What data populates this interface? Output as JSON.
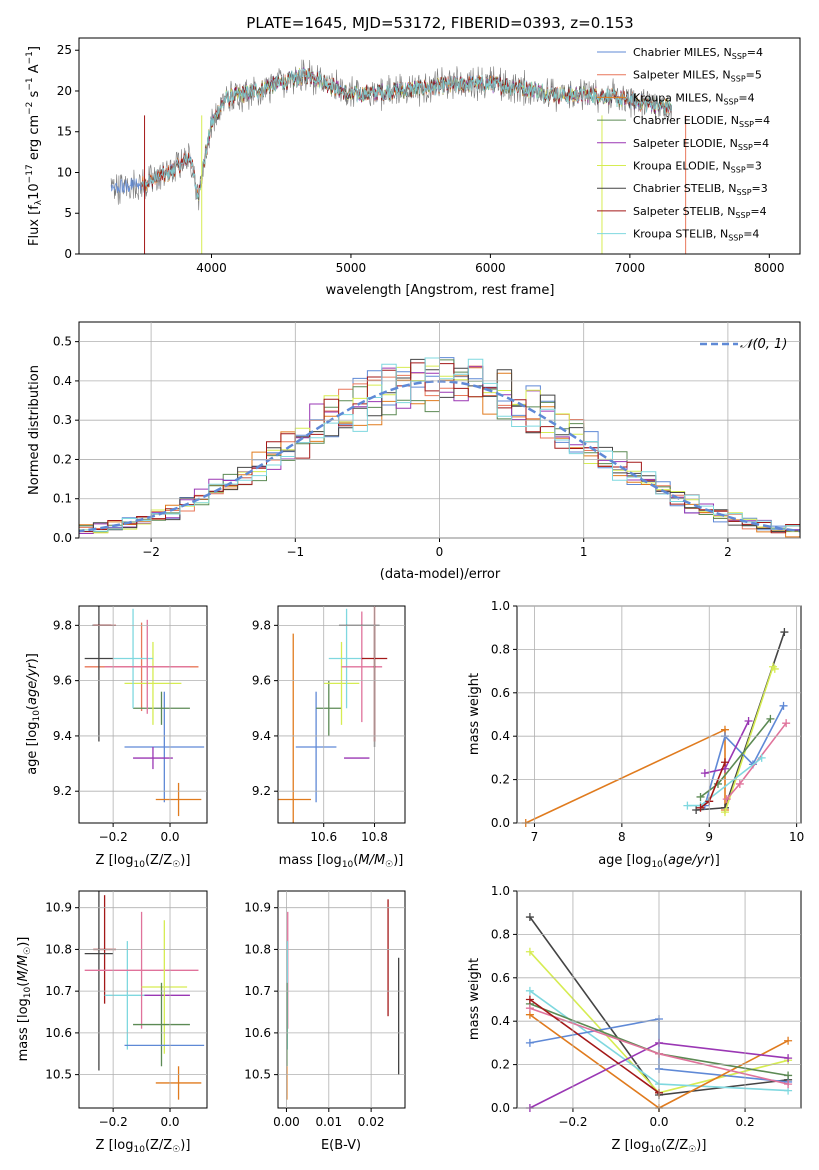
{
  "colors": {
    "chabrier_miles": "#5f89d6",
    "salpeter_miles": "#e8775a",
    "kroupa_miles": "#e07b1e",
    "chabrier_elodie": "#5c8a54",
    "salpeter_elodie": "#9a37b4",
    "kroupa_elodie": "#d6ec52",
    "chabrier_stelib": "#444444",
    "salpeter_stelib": "#a31818",
    "kroupa_stelib": "#7fd8df",
    "pink": "#e0739b",
    "gridline": "#b0b0b0",
    "data_spectrum": "#7a7a7a"
  },
  "chart_data": [
    {
      "type": "line",
      "title": "PLATE=1645, MJD=53172, FIBERID=0393, z=0.153",
      "xlabel": "wavelength [Angstrom, rest frame]",
      "ylabel": "Flux [f_λ 10^-17 erg cm^-2 s^-1 A^-1]",
      "xlim": [
        3050,
        8220
      ],
      "ylim": [
        0,
        26.5
      ],
      "xticks": [
        "4000",
        "5000",
        "6000",
        "7000",
        "8000"
      ],
      "yticks": [
        "0",
        "5",
        "10",
        "15",
        "20",
        "25"
      ],
      "grid": false,
      "legend_position": "top-right",
      "legend": [
        "Chabrier MILES, N_SSP=4",
        "Salpeter MILES, N_SSP=5",
        "Kroupa MILES, N_SSP=4",
        "Chabrier ELODIE, N_SSP=4",
        "Salpeter ELODIE, N_SSP=4",
        "Kroupa ELODIE, N_SSP=3",
        "Chabrier STELIB, N_SSP=3",
        "Salpeter STELIB, N_SSP=4",
        "Kroupa STELIB, N_SSP=4"
      ],
      "spectrum_profile": {
        "x": [
          3280,
          3500,
          3700,
          3850,
          3900,
          4000,
          4100,
          4300,
          4500,
          4700,
          5000,
          5300,
          5600,
          5900,
          6200,
          6500,
          6800,
          7100,
          7300
        ],
        "y": [
          8,
          8.5,
          10,
          12,
          7,
          16,
          19,
          20,
          21,
          22,
          19.5,
          20,
          20.5,
          21,
          20.5,
          19.5,
          19.5,
          18.5,
          18
        ]
      }
    },
    {
      "type": "histogram",
      "xlabel": "(data-model)/error",
      "ylabel": "Normed distribution",
      "xlim": [
        -2.5,
        2.5
      ],
      "ylim": [
        0,
        0.55
      ],
      "xticks": [
        "−2",
        "−1",
        "0",
        "1",
        "2"
      ],
      "yticks": [
        "0.0",
        "0.1",
        "0.2",
        "0.3",
        "0.4",
        "0.5"
      ],
      "grid": true,
      "legend_position": "top-right",
      "legend": [
        "𝒩(0, 1)"
      ],
      "bin_width": 0.1
    },
    {
      "type": "errorbar",
      "xlabel": "Z [log10(Z/Z☉)]",
      "ylabel": "age  [log10(age/yr)]",
      "xlim": [
        -0.32,
        0.13
      ],
      "ylim": [
        9.085,
        9.87
      ],
      "xticks": [
        "−0.2",
        "0.0"
      ],
      "yticks": [
        "9.2",
        "9.4",
        "9.6",
        "9.8"
      ],
      "points": [
        {
          "series": "chabrier_miles",
          "x": -0.02,
          "y": 9.36,
          "xerr": 0.14,
          "yerr": 0.2
        },
        {
          "series": "salpeter_miles",
          "x": -0.1,
          "y": 9.65,
          "xerr": 0.2,
          "yerr": 0.16
        },
        {
          "series": "kroupa_miles",
          "x": 0.03,
          "y": 9.17,
          "xerr": 0.08,
          "yerr": 0.06
        },
        {
          "series": "chabrier_elodie",
          "x": -0.03,
          "y": 9.5,
          "xerr": 0.1,
          "yerr": 0.06
        },
        {
          "series": "salpeter_elodie",
          "x": -0.06,
          "y": 9.32,
          "xerr": 0.07,
          "yerr": 0.04
        },
        {
          "series": "kroupa_elodie",
          "x": -0.06,
          "y": 9.59,
          "xerr": 0.1,
          "yerr": 0.15
        },
        {
          "series": "chabrier_stelib",
          "x": -0.27,
          "y": 9.8,
          "xerr": 0.0,
          "yerr": 0.0
        },
        {
          "series": "chabrier_stelib",
          "x": -0.25,
          "y": 9.68,
          "xerr": 0.05,
          "yerr": 0.3
        },
        {
          "series": "salpeter_stelib",
          "x": -0.23,
          "y": 9.8,
          "xerr": 0.04,
          "yerr": 0.0
        },
        {
          "series": "kroupa_stelib",
          "x": -0.13,
          "y": 9.68,
          "xerr": 0.07,
          "yerr": 0.18
        },
        {
          "series": "pink",
          "x": -0.08,
          "y": 9.65,
          "xerr": 0.15,
          "yerr": 0.17
        }
      ]
    },
    {
      "type": "errorbar",
      "xlabel": "mass [log10(M/M☉)]",
      "ylabel": "",
      "xlim": [
        10.42,
        10.92
      ],
      "ylim": [
        9.085,
        9.87
      ],
      "xticks": [
        "10.6",
        "10.8"
      ],
      "yticks": [
        "9.2",
        "9.4",
        "9.6",
        "9.8"
      ],
      "points": [
        {
          "series": "kroupa_miles",
          "x": 10.48,
          "y": 9.17,
          "xerr": 0.07,
          "yerr": 0.6
        },
        {
          "series": "chabrier_miles",
          "x": 10.57,
          "y": 9.36,
          "xerr": 0.08,
          "yerr": 0.2
        },
        {
          "series": "chabrier_elodie",
          "x": 10.62,
          "y": 9.5,
          "xerr": 0.05,
          "yerr": 0.1
        },
        {
          "series": "kroupa_elodie",
          "x": 10.67,
          "y": 9.59,
          "xerr": 0.07,
          "yerr": 0.15
        },
        {
          "series": "kroupa_stelib",
          "x": 10.69,
          "y": 9.68,
          "xerr": 0.07,
          "yerr": 0.18
        },
        {
          "series": "salpeter_elodie",
          "x": 10.73,
          "y": 9.32,
          "xerr": 0.05,
          "yerr": 0.0
        },
        {
          "series": "pink",
          "x": 10.75,
          "y": 9.65,
          "xerr": 0.08,
          "yerr": 0.2
        },
        {
          "series": "chabrier_stelib",
          "x": 10.74,
          "y": 9.8,
          "xerr": 0.08,
          "yerr": 0.0
        },
        {
          "series": "chabrier_stelib",
          "x": 10.8,
          "y": 9.58,
          "xerr": 0.0,
          "yerr": 0.22
        },
        {
          "series": "salpeter_stelib",
          "x": 10.8,
          "y": 9.68,
          "xerr": 0.05,
          "yerr": 0.3
        }
      ]
    },
    {
      "type": "line",
      "xlabel": "age  [log10(age/yr)]",
      "ylabel": "mass weight",
      "xlim": [
        6.8,
        10.05
      ],
      "ylim": [
        0,
        1
      ],
      "xticks": [
        "7",
        "8",
        "9",
        "10"
      ],
      "yticks": [
        "0.0",
        "0.2",
        "0.4",
        "0.6",
        "0.8",
        "1.0"
      ],
      "grid": true,
      "series": [
        {
          "color": "kroupa_miles",
          "x": [
            6.9,
            9.18,
            9.18
          ],
          "y": [
            0.0,
            0.43,
            0.06
          ]
        },
        {
          "color": "chabrier_stelib",
          "x": [
            8.85,
            9.18,
            9.86
          ],
          "y": [
            0.06,
            0.07,
            0.88
          ]
        },
        {
          "color": "kroupa_elodie",
          "x": [
            9.18,
            9.73,
            9.75
          ],
          "y": [
            0.05,
            0.72,
            0.71
          ]
        },
        {
          "color": "chabrier_miles",
          "x": [
            8.95,
            9.18,
            9.5,
            9.85
          ],
          "y": [
            0.08,
            0.4,
            0.27,
            0.54
          ]
        },
        {
          "color": "salpeter_elodie",
          "x": [
            8.95,
            9.18,
            9.45
          ],
          "y": [
            0.23,
            0.25,
            0.47
          ]
        },
        {
          "color": "chabrier_elodie",
          "x": [
            8.9,
            9.1,
            9.7
          ],
          "y": [
            0.12,
            0.18,
            0.48
          ]
        },
        {
          "color": "pink",
          "x": [
            9.2,
            9.35,
            9.88
          ],
          "y": [
            0.11,
            0.18,
            0.46
          ]
        },
        {
          "color": "kroupa_stelib",
          "x": [
            8.75,
            8.9,
            9.6
          ],
          "y": [
            0.08,
            0.08,
            0.3
          ]
        },
        {
          "color": "salpeter_stelib",
          "x": [
            8.9,
            9.0,
            9.18
          ],
          "y": [
            0.07,
            0.1,
            0.28
          ]
        }
      ]
    },
    {
      "type": "errorbar",
      "xlabel": "Z [log10(Z/Z☉)]",
      "ylabel": "mass [log10(M/M☉)]",
      "xlim": [
        -0.32,
        0.13
      ],
      "ylim": [
        10.42,
        10.94
      ],
      "xticks": [
        "−0.2",
        "0.0"
      ],
      "yticks": [
        "10.5",
        "10.6",
        "10.7",
        "10.8",
        "10.9"
      ],
      "points": [
        {
          "series": "salpeter_stelib",
          "x": -0.23,
          "y": 10.8,
          "xerr": 0.04,
          "yerr": 0.13
        },
        {
          "series": "chabrier_stelib",
          "x": -0.25,
          "y": 10.79,
          "xerr": 0.05,
          "yerr": 0.28
        },
        {
          "series": "kroupa_stelib",
          "x": -0.15,
          "y": 10.69,
          "xerr": 0.08,
          "yerr": 0.13
        },
        {
          "series": "pink",
          "x": -0.1,
          "y": 10.75,
          "xerr": 0.2,
          "yerr": 0.14
        },
        {
          "series": "salpeter_elodie",
          "x": -0.01,
          "y": 10.69,
          "xerr": 0.08,
          "yerr": 0.0
        },
        {
          "series": "kroupa_elodie",
          "x": -0.02,
          "y": 10.71,
          "xerr": 0.08,
          "yerr": 0.16
        },
        {
          "series": "chabrier_elodie",
          "x": -0.03,
          "y": 10.62,
          "xerr": 0.1,
          "yerr": 0.1
        },
        {
          "series": "chabrier_miles",
          "x": -0.02,
          "y": 10.57,
          "xerr": 0.14,
          "yerr": 0.0
        },
        {
          "series": "kroupa_miles",
          "x": 0.03,
          "y": 10.48,
          "xerr": 0.08,
          "yerr": 0.04
        }
      ]
    },
    {
      "type": "errorbar",
      "xlabel": "E(B-V)",
      "ylabel": "",
      "xlim": [
        -0.002,
        0.028
      ],
      "ylim": [
        10.42,
        10.94
      ],
      "xticks": [
        "0.00",
        "0.01",
        "0.02"
      ],
      "yticks": [
        "10.5",
        "10.6",
        "10.7",
        "10.8",
        "10.9"
      ],
      "points": [
        {
          "series": "salpeter_stelib",
          "x": 0.024,
          "y": 10.78,
          "yerr": 0.14
        },
        {
          "series": "chabrier_stelib",
          "x": 0.0265,
          "y": 10.64,
          "yerr": 0.14
        },
        {
          "series": "pink",
          "x": 0.0003,
          "y": 10.75,
          "yerr": 0.14
        },
        {
          "series": "kroupa_stelib",
          "x": 0.0002,
          "y": 10.69,
          "yerr": 0.13
        },
        {
          "series": "chabrier_elodie",
          "x": 0.0001,
          "y": 10.62,
          "yerr": 0.1
        },
        {
          "series": "kroupa_miles",
          "x": 0.0001,
          "y": 10.48,
          "yerr": 0.04
        }
      ]
    },
    {
      "type": "line",
      "xlabel": "Z [log10(Z/Z☉)]",
      "ylabel": "mass weight",
      "xlim": [
        -0.33,
        0.33
      ],
      "ylim": [
        0,
        1
      ],
      "xticks": [
        "−0.2",
        "0.0",
        "0.2"
      ],
      "yticks": [
        "0.0",
        "0.2",
        "0.4",
        "0.6",
        "0.8",
        "1.0"
      ],
      "grid": true,
      "series": [
        {
          "color": "chabrier_stelib",
          "x": [
            -0.3,
            0.0,
            0.3
          ],
          "y": [
            0.88,
            0.06,
            0.13
          ]
        },
        {
          "color": "kroupa_elodie",
          "x": [
            -0.3,
            0.0,
            0.3
          ],
          "y": [
            0.72,
            0.07,
            0.22
          ]
        },
        {
          "color": "kroupa_stelib",
          "x": [
            -0.3,
            0.0,
            0.3
          ],
          "y": [
            0.54,
            0.11,
            0.08
          ]
        },
        {
          "color": "chabrier_miles",
          "x": [
            -0.3,
            0.0,
            0.0,
            0.3
          ],
          "y": [
            0.3,
            0.41,
            0.18,
            0.12
          ]
        },
        {
          "color": "kroupa_miles",
          "x": [
            -0.3,
            0.0,
            0.3
          ],
          "y": [
            0.43,
            0.0,
            0.31
          ]
        },
        {
          "color": "salpeter_elodie",
          "x": [
            -0.3,
            0.0,
            0.3
          ],
          "y": [
            0.0,
            0.3,
            0.23
          ]
        },
        {
          "color": "chabrier_elodie",
          "x": [
            -0.3,
            0.0,
            0.3
          ],
          "y": [
            0.48,
            0.25,
            0.15
          ]
        },
        {
          "color": "pink",
          "x": [
            -0.3,
            0.0,
            0.3
          ],
          "y": [
            0.46,
            0.25,
            0.11
          ]
        },
        {
          "color": "salpeter_stelib",
          "x": [
            -0.3,
            0.0
          ],
          "y": [
            0.5,
            0.07
          ]
        }
      ]
    }
  ]
}
